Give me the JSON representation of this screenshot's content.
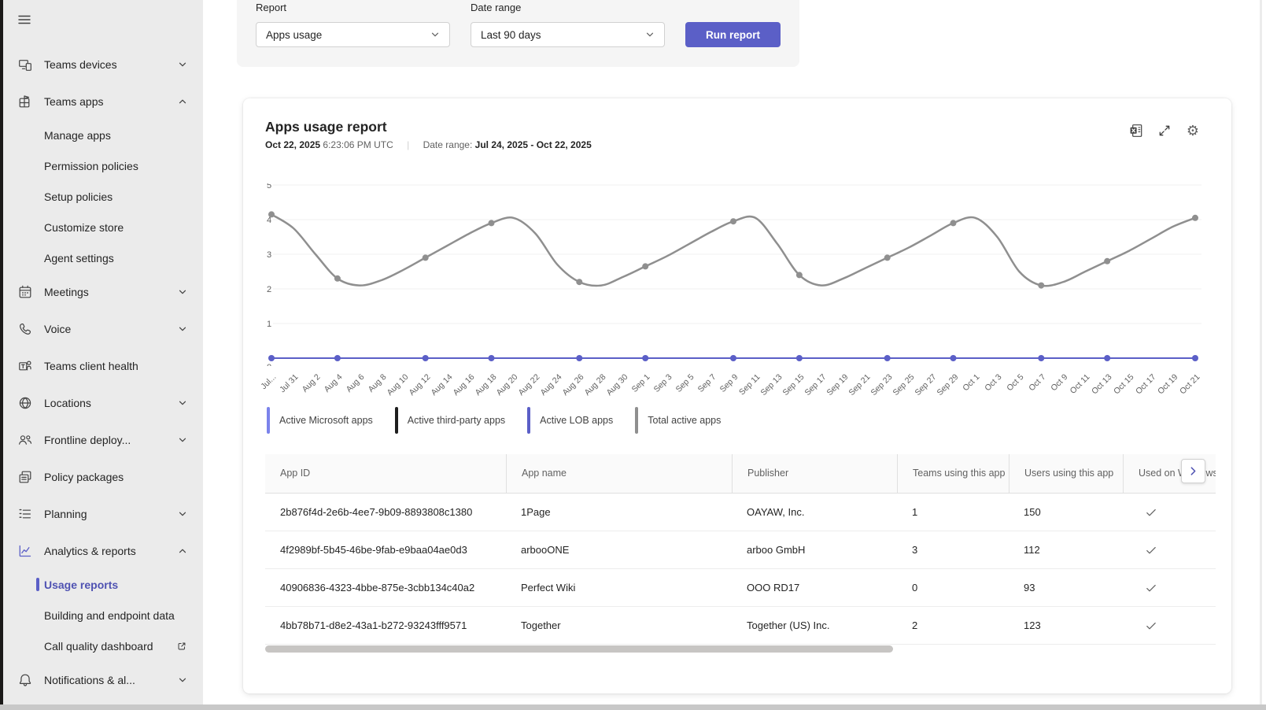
{
  "colors": {
    "accent": "#5b5fc7",
    "selected_text": "#4f52b2",
    "sidebar_bg": "#ebebeb",
    "panel_bg": "#f5f5f5"
  },
  "sidebar": {
    "items": [
      {
        "label": "Teams devices",
        "icon": "devices",
        "chevron": "down"
      },
      {
        "label": "Teams apps",
        "icon": "apps",
        "chevron": "up"
      },
      {
        "label": "Manage apps",
        "sub": true
      },
      {
        "label": "Permission policies",
        "sub": true
      },
      {
        "label": "Setup policies",
        "sub": true
      },
      {
        "label": "Customize store",
        "sub": true
      },
      {
        "label": "Agent settings",
        "sub": true
      },
      {
        "label": "Meetings",
        "icon": "calendar",
        "chevron": "down"
      },
      {
        "label": "Voice",
        "icon": "phone",
        "chevron": "down"
      },
      {
        "label": "Teams client health",
        "icon": "health"
      },
      {
        "label": "Locations",
        "icon": "globe",
        "chevron": "down"
      },
      {
        "label": "Frontline deploy...",
        "icon": "people",
        "chevron": "down"
      },
      {
        "label": "Policy packages",
        "icon": "package"
      },
      {
        "label": "Planning",
        "icon": "planning",
        "chevron": "down"
      },
      {
        "label": "Analytics & reports",
        "icon": "chart",
        "chevron": "up",
        "accent": true
      },
      {
        "label": "Usage reports",
        "sub": true,
        "selected": true
      },
      {
        "label": "Building and endpoint data",
        "sub": true
      },
      {
        "label": "Call quality dashboard",
        "sub": true,
        "external": true
      },
      {
        "label": "Notifications & al...",
        "icon": "bell",
        "chevron": "down"
      }
    ]
  },
  "filters": {
    "report_label": "Report",
    "report_value": "Apps usage",
    "date_range_label": "Date range",
    "date_range_value": "Last 90 days",
    "run_button": "Run report"
  },
  "report": {
    "title": "Apps usage report",
    "generated_date": "Oct 22, 2025",
    "generated_time": "6:23:06 PM UTC",
    "separator": "|",
    "date_range_label": "Date range:",
    "date_range_value": "Jul 24, 2025 - Oct 22, 2025",
    "header_icons": [
      {
        "name": "export-to-excel",
        "icon": "excel"
      },
      {
        "name": "fullscreen",
        "icon": "expand"
      },
      {
        "name": "settings",
        "icon": "gear"
      }
    ]
  },
  "chart_data": {
    "type": "line",
    "title": "Apps usage report",
    "xlabel": "",
    "ylabel": "",
    "ylim": [
      0,
      5
    ],
    "yticks": [
      0,
      1,
      2,
      3,
      4,
      5
    ],
    "grid": true,
    "legend_position": "bottom",
    "x": [
      "Jul...",
      "Jul 31",
      "Aug 2",
      "Aug 4",
      "Aug 6",
      "Aug 8",
      "Aug 10",
      "Aug 12",
      "Aug 14",
      "Aug 16",
      "Aug 18",
      "Aug 20",
      "Aug 22",
      "Aug 24",
      "Aug 26",
      "Aug 28",
      "Aug 30",
      "Sep 1",
      "Sep 3",
      "Sep 5",
      "Sep 7",
      "Sep 9",
      "Sep 11",
      "Sep 13",
      "Sep 15",
      "Sep 17",
      "Sep 19",
      "Sep 21",
      "Sep 23",
      "Sep 25",
      "Sep 27",
      "Sep 29",
      "Oct 1",
      "Oct 3",
      "Oct 5",
      "Oct 7",
      "Oct 9",
      "Oct 11",
      "Oct 13",
      "Oct 15",
      "Oct 17",
      "Oct 19",
      "Oct 21"
    ],
    "marker_indices": [
      0,
      3,
      7,
      10,
      14,
      17,
      21,
      24,
      28,
      31,
      35,
      38,
      42
    ],
    "series": [
      {
        "name": "Active Microsoft apps",
        "color": "#7b83eb",
        "width": 2,
        "markers": false,
        "values": [
          0,
          0,
          0,
          0,
          0,
          0,
          0,
          0,
          0,
          0,
          0,
          0,
          0,
          0,
          0,
          0,
          0,
          0,
          0,
          0,
          0,
          0,
          0,
          0,
          0,
          0,
          0,
          0,
          0,
          0,
          0,
          0,
          0,
          0,
          0,
          0,
          0,
          0,
          0,
          0,
          0,
          0,
          0
        ]
      },
      {
        "name": "Active third-party apps",
        "color": "#1f1f1f",
        "width": 2,
        "markers": false,
        "values": [
          0,
          0,
          0,
          0,
          0,
          0,
          0,
          0,
          0,
          0,
          0,
          0,
          0,
          0,
          0,
          0,
          0,
          0,
          0,
          0,
          0,
          0,
          0,
          0,
          0,
          0,
          0,
          0,
          0,
          0,
          0,
          0,
          0,
          0,
          0,
          0,
          0,
          0,
          0,
          0,
          0,
          0,
          0
        ]
      },
      {
        "name": "Active LOB apps",
        "color": "#5b5fc7",
        "width": 2,
        "markers": true,
        "values": [
          0,
          0,
          0,
          0,
          0,
          0,
          0,
          0,
          0,
          0,
          0,
          0,
          0,
          0,
          0,
          0,
          0,
          0,
          0,
          0,
          0,
          0,
          0,
          0,
          0,
          0,
          0,
          0,
          0,
          0,
          0,
          0,
          0,
          0,
          0,
          0,
          0,
          0,
          0,
          0,
          0,
          0,
          0
        ]
      },
      {
        "name": "Total active apps",
        "color": "#8f8f8f",
        "width": 2.5,
        "markers": true,
        "values": [
          4.15,
          3.75,
          3.0,
          2.3,
          2.1,
          2.25,
          2.55,
          2.9,
          3.25,
          3.6,
          3.9,
          4.05,
          3.6,
          2.7,
          2.2,
          2.1,
          2.35,
          2.65,
          2.95,
          3.3,
          3.65,
          3.95,
          4.05,
          3.3,
          2.4,
          2.1,
          2.3,
          2.6,
          2.9,
          3.2,
          3.55,
          3.9,
          4.05,
          3.5,
          2.5,
          2.1,
          2.2,
          2.5,
          2.8,
          3.1,
          3.45,
          3.8,
          4.05
        ]
      }
    ]
  },
  "table": {
    "columns": [
      "App ID",
      "App name",
      "Publisher",
      "Teams using this app",
      "Users using this app",
      "Used on Windows"
    ],
    "rows": [
      {
        "app_id": "2b876f4d-2e6b-4ee7-9b09-8893808c1380",
        "app_name": "1Page",
        "publisher": "OAYAW, Inc.",
        "teams_using": "1",
        "users_using": "150",
        "used_on_windows": true
      },
      {
        "app_id": "4f2989bf-5b45-46be-9fab-e9baa04ae0d3",
        "app_name": "arbooONE",
        "publisher": "arboo GmbH",
        "teams_using": "3",
        "users_using": "112",
        "used_on_windows": true
      },
      {
        "app_id": "40906836-4323-4bbe-875e-3cbb134c40a2",
        "app_name": "Perfect Wiki",
        "publisher": "OOO RD17",
        "teams_using": "0",
        "users_using": "93",
        "used_on_windows": true
      },
      {
        "app_id": "4bb78b71-d8e2-43a1-b272-93243fff9571",
        "app_name": "Together",
        "publisher": "Together (US) Inc.",
        "teams_using": "2",
        "users_using": "123",
        "used_on_windows": true
      }
    ]
  }
}
